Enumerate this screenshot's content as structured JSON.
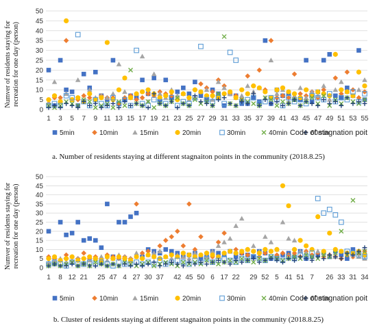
{
  "colors": {
    "5min": "#4472c4",
    "10min": "#ed7d31",
    "15min": "#a5a5a5",
    "20min": "#ffc000",
    "30min": "#5b9bd5",
    "40min": "#70ad47",
    "60min": "#264478"
  },
  "chart_data": [
    {
      "type": "scatter",
      "title": "",
      "caption": "a. Number of residents staying at different stagnaiton points in the community (2018.8.25)",
      "ylabel": "Numver of residents staying for recreation for one day (person)",
      "xlabel": "Code of stagnation poit",
      "ylim": [
        0,
        50
      ],
      "yticks": [
        0,
        5,
        10,
        15,
        20,
        25,
        30,
        35,
        40,
        45,
        50
      ],
      "grid": "horizontal",
      "legend": "bottom",
      "x_tick_labels": [
        "1",
        "3",
        "5",
        "7",
        "9",
        "11",
        "13",
        "15",
        "17",
        "19",
        "21",
        "23",
        "25",
        "27",
        "29",
        "31",
        "33",
        "35",
        "37",
        "39",
        "41",
        "43",
        "45",
        "47",
        "49",
        "51",
        "53",
        "55"
      ],
      "series": [
        {
          "name": "5min",
          "marker": "square",
          "values": [
            20,
            2,
            25,
            10,
            9,
            2,
            18,
            11,
            19,
            7,
            5,
            25,
            3,
            5,
            7,
            6,
            15,
            8,
            16,
            5,
            15,
            6,
            9,
            11,
            8,
            14,
            7,
            5,
            10,
            8,
            2,
            8,
            7,
            3,
            3,
            6,
            4,
            35,
            3,
            10,
            7,
            8,
            5,
            5,
            25,
            4,
            9,
            25,
            28,
            7,
            6,
            11,
            7,
            30,
            5
          ]
        },
        {
          "name": "10min",
          "marker": "diamond",
          "values": [
            3,
            6,
            6,
            35,
            5,
            5,
            7,
            6,
            5,
            7,
            6,
            6,
            3,
            6,
            7,
            5,
            6,
            8,
            7,
            9,
            8,
            7,
            5,
            8,
            6,
            10,
            13,
            11,
            9,
            15,
            12,
            8,
            7,
            5,
            17,
            12,
            20,
            10,
            35,
            6,
            7,
            6,
            18,
            8,
            7,
            9,
            6,
            10,
            7,
            16,
            8,
            19,
            10,
            6,
            9
          ]
        },
        {
          "name": "15min",
          "marker": "triangle",
          "values": [
            3,
            14,
            4,
            8,
            5,
            15,
            4,
            10,
            6,
            7,
            6,
            8,
            23,
            9,
            6,
            8,
            27,
            4,
            18,
            8,
            6,
            10,
            7,
            8,
            5,
            6,
            9,
            10,
            5,
            14,
            11,
            8,
            6,
            7,
            12,
            9,
            11,
            6,
            25,
            8,
            10,
            4,
            7,
            11,
            6,
            9,
            7,
            12,
            5,
            10,
            14,
            9,
            7,
            10,
            15
          ]
        },
        {
          "name": "20min",
          "marker": "circle",
          "values": [
            5,
            7,
            4,
            45,
            5,
            6,
            4,
            8,
            5,
            6,
            34,
            5,
            10,
            16,
            6,
            8,
            9,
            10,
            8,
            6,
            7,
            9,
            5,
            8,
            6,
            10,
            9,
            7,
            7,
            6,
            8,
            9,
            6,
            10,
            8,
            12,
            11,
            9,
            6,
            10,
            11,
            9,
            8,
            6,
            10,
            7,
            9,
            8,
            7,
            28,
            10,
            9,
            7,
            19,
            12
          ]
        },
        {
          "name": "30min",
          "marker": "square-open",
          "values": [
            2,
            3,
            2,
            7,
            6,
            38,
            4,
            2,
            5,
            3,
            2,
            6,
            3,
            5,
            2,
            30,
            3,
            2,
            5,
            4,
            3,
            6,
            2,
            4,
            3,
            6,
            32,
            5,
            4,
            6,
            3,
            29,
            25,
            4,
            5,
            6,
            3,
            4,
            6,
            5,
            2,
            6,
            4,
            5,
            3,
            7,
            6,
            5,
            8,
            4,
            6,
            5,
            9,
            4,
            8
          ]
        },
        {
          "name": "40min",
          "marker": "cross",
          "values": [
            2,
            1,
            2,
            4,
            3,
            2,
            5,
            4,
            1,
            2,
            3,
            1,
            4,
            2,
            20,
            3,
            2,
            4,
            1,
            3,
            2,
            4,
            6,
            3,
            2,
            5,
            3,
            4,
            2,
            8,
            37,
            3,
            2,
            5,
            4,
            3,
            2,
            6,
            5,
            2,
            4,
            3,
            5,
            2,
            4,
            6,
            3,
            7,
            2,
            5,
            3,
            6,
            4,
            3,
            5
          ]
        },
        {
          "name": "60min",
          "marker": "plus",
          "values": [
            1,
            2,
            1,
            3,
            2,
            1,
            4,
            2,
            3,
            1,
            2,
            3,
            1,
            4,
            2,
            3,
            2,
            1,
            8,
            3,
            2,
            4,
            1,
            3,
            2,
            7,
            4,
            3,
            2,
            5,
            6,
            3,
            2,
            4,
            3,
            8,
            2,
            5,
            3,
            4,
            2,
            3,
            5,
            2,
            4,
            3,
            2,
            5,
            3,
            4,
            2,
            6,
            3,
            4,
            3
          ]
        }
      ]
    },
    {
      "type": "scatter",
      "title": "",
      "caption": "b. Cluster of residents staying at different stagnaiton points in the community (2018.8.25)",
      "ylabel": "Numver of residents staying for recreation for one day (person)",
      "xlabel": "Code of stagnation poit",
      "ylim": [
        0,
        50
      ],
      "yticks": [
        0,
        5,
        10,
        15,
        20,
        25,
        30,
        35,
        40,
        45,
        50
      ],
      "grid": "horizontal",
      "legend": "bottom",
      "x_tick_labels": [
        "1",
        "8",
        "12",
        "21",
        "25",
        "47",
        "4",
        "27",
        "30",
        "37",
        "42",
        "45",
        "50",
        "6",
        "17",
        "22",
        "29",
        "52",
        "5",
        "41",
        "51",
        "7",
        "26",
        "33",
        "31",
        "34"
      ],
      "series": [
        {
          "name": "5min",
          "marker": "square",
          "values": [
            20,
            2,
            25,
            18,
            19,
            25,
            15,
            16,
            15,
            11,
            35,
            6,
            25,
            25,
            28,
            30,
            6,
            10,
            9,
            8,
            10,
            9,
            8,
            6,
            7,
            8,
            5,
            6,
            9,
            8,
            7,
            9,
            6,
            8,
            7,
            6,
            9,
            8,
            5,
            6,
            7,
            8,
            6,
            9,
            5,
            6,
            7,
            8,
            6,
            9,
            7,
            5,
            10,
            8,
            7
          ]
        },
        {
          "name": "10min",
          "marker": "diamond",
          "values": [
            6,
            5,
            4,
            7,
            6,
            5,
            8,
            5,
            6,
            5,
            7,
            6,
            5,
            6,
            5,
            35,
            8,
            9,
            6,
            12,
            15,
            17,
            20,
            12,
            35,
            10,
            17,
            8,
            6,
            14,
            19,
            9,
            10,
            8,
            7,
            9,
            6,
            8,
            9,
            7,
            8,
            7,
            8,
            6,
            9,
            7,
            8,
            6,
            7,
            6,
            5,
            7,
            6,
            8,
            9
          ]
        },
        {
          "name": "15min",
          "marker": "triangle",
          "values": [
            3,
            4,
            5,
            3,
            4,
            5,
            3,
            4,
            5,
            6,
            4,
            5,
            7,
            6,
            5,
            8,
            6,
            7,
            8,
            9,
            6,
            5,
            7,
            6,
            5,
            8,
            7,
            6,
            9,
            12,
            14,
            16,
            23,
            27,
            10,
            12,
            9,
            17,
            14,
            10,
            25,
            16,
            15,
            9,
            8,
            10,
            9,
            8,
            7,
            6,
            9,
            8,
            7,
            6,
            5
          ]
        },
        {
          "name": "20min",
          "marker": "circle",
          "values": [
            5,
            6,
            4,
            5,
            6,
            4,
            5,
            6,
            5,
            4,
            6,
            5,
            6,
            5,
            4,
            6,
            5,
            7,
            6,
            5,
            6,
            7,
            6,
            8,
            7,
            6,
            7,
            8,
            7,
            6,
            8,
            9,
            8,
            9,
            10,
            9,
            8,
            10,
            9,
            10,
            45,
            34,
            10,
            15,
            12,
            10,
            28,
            9,
            19,
            10,
            9,
            8,
            8,
            9,
            7
          ]
        },
        {
          "name": "30min",
          "marker": "square-open",
          "values": [
            2,
            3,
            2,
            1,
            3,
            2,
            2,
            3,
            2,
            3,
            2,
            1,
            3,
            2,
            2,
            3,
            2,
            3,
            2,
            4,
            2,
            3,
            4,
            3,
            2,
            4,
            3,
            5,
            3,
            4,
            5,
            4,
            3,
            5,
            4,
            6,
            5,
            4,
            6,
            5,
            4,
            6,
            5,
            7,
            6,
            8,
            38,
            30,
            32,
            29,
            25,
            9,
            8,
            7,
            6
          ]
        },
        {
          "name": "40min",
          "marker": "cross",
          "values": [
            1,
            2,
            1,
            2,
            3,
            1,
            2,
            1,
            3,
            2,
            1,
            2,
            1,
            3,
            2,
            1,
            2,
            3,
            1,
            2,
            3,
            2,
            1,
            3,
            2,
            3,
            2,
            4,
            3,
            2,
            3,
            4,
            3,
            5,
            4,
            3,
            5,
            4,
            6,
            5,
            4,
            5,
            6,
            5,
            7,
            6,
            5,
            7,
            6,
            8,
            20,
            7,
            37,
            8,
            9
          ]
        },
        {
          "name": "60min",
          "marker": "plus",
          "values": [
            1,
            2,
            1,
            1,
            2,
            1,
            2,
            1,
            1,
            2,
            1,
            2,
            1,
            2,
            1,
            2,
            1,
            2,
            3,
            1,
            2,
            3,
            2,
            1,
            3,
            2,
            3,
            2,
            3,
            4,
            3,
            2,
            4,
            3,
            4,
            5,
            3,
            4,
            5,
            4,
            3,
            5,
            4,
            6,
            5,
            4,
            6,
            5,
            7,
            6,
            5,
            8,
            7,
            9,
            11
          ]
        }
      ]
    }
  ]
}
